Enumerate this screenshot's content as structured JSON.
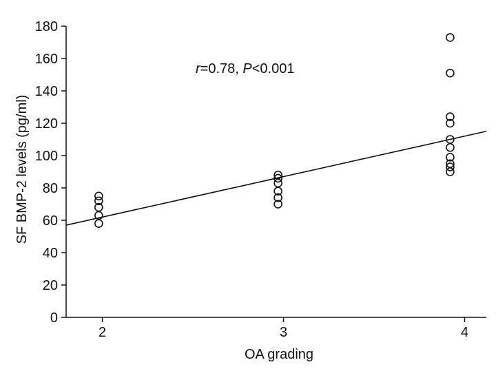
{
  "chart_data": {
    "type": "scatter",
    "xlabel": "OA grading",
    "ylabel": "SF BMP-2 levels (pg/ml)",
    "annotation": {
      "r_symbol": "r",
      "r_value": "=0.78, ",
      "p_symbol": "P",
      "p_value": "<0.001"
    },
    "xlim": [
      1.8,
      4.12
    ],
    "ylim": [
      0,
      180
    ],
    "x_ticks": [
      2,
      3,
      4
    ],
    "y_ticks": [
      0,
      20,
      40,
      60,
      80,
      100,
      120,
      140,
      160,
      180
    ],
    "grid": false,
    "legend": "none",
    "points": [
      {
        "x": 1.98,
        "y": 75
      },
      {
        "x": 1.98,
        "y": 72
      },
      {
        "x": 1.98,
        "y": 68
      },
      {
        "x": 1.98,
        "y": 63
      },
      {
        "x": 1.98,
        "y": 58
      },
      {
        "x": 2.97,
        "y": 88
      },
      {
        "x": 2.97,
        "y": 86
      },
      {
        "x": 2.97,
        "y": 83
      },
      {
        "x": 2.97,
        "y": 78
      },
      {
        "x": 2.97,
        "y": 74
      },
      {
        "x": 2.97,
        "y": 70
      },
      {
        "x": 3.92,
        "y": 173
      },
      {
        "x": 3.92,
        "y": 151
      },
      {
        "x": 3.92,
        "y": 124
      },
      {
        "x": 3.92,
        "y": 120
      },
      {
        "x": 3.92,
        "y": 110
      },
      {
        "x": 3.92,
        "y": 105
      },
      {
        "x": 3.92,
        "y": 99
      },
      {
        "x": 3.92,
        "y": 95
      },
      {
        "x": 3.92,
        "y": 93
      },
      {
        "x": 3.92,
        "y": 90
      }
    ],
    "fit_line": {
      "x0": 1.8,
      "y0": 57,
      "x1": 4.12,
      "y1": 115
    },
    "colors": {
      "ink": "#111111",
      "background": "#ffffff"
    }
  }
}
